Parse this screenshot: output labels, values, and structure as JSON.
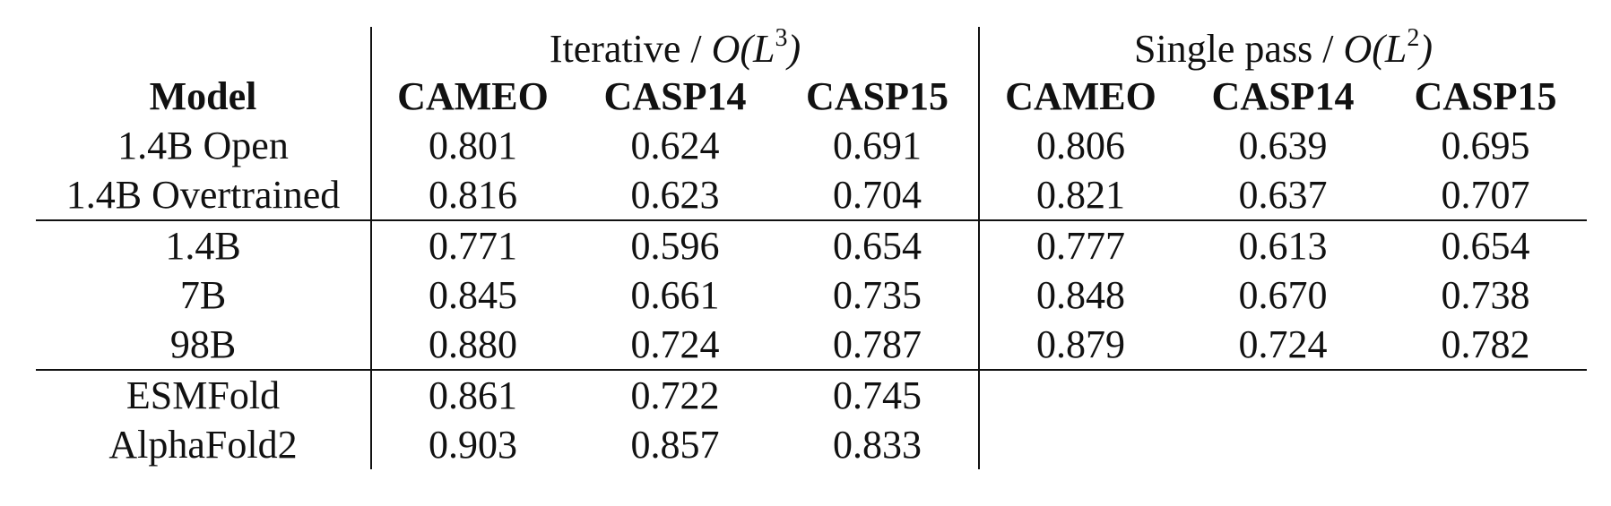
{
  "table": {
    "group_header": {
      "iterative": {
        "label": "Iterative / ",
        "complexity": "O(L",
        "exp": "3",
        "close": ")"
      },
      "single": {
        "label": "Single pass / ",
        "complexity": "O(L",
        "exp": "2",
        "close": ")"
      }
    },
    "columns": [
      "Model",
      "CAMEO",
      "CASP14",
      "CASP15",
      "CAMEO",
      "CASP14",
      "CASP15"
    ],
    "rows": [
      {
        "model": "1.4B Open",
        "values": [
          "0.801",
          "0.624",
          "0.691",
          "0.806",
          "0.639",
          "0.695"
        ]
      },
      {
        "model": "1.4B Overtrained",
        "values": [
          "0.816",
          "0.623",
          "0.704",
          "0.821",
          "0.637",
          "0.707"
        ]
      },
      {
        "model": "1.4B",
        "values": [
          "0.771",
          "0.596",
          "0.654",
          "0.777",
          "0.613",
          "0.654"
        ]
      },
      {
        "model": "7B",
        "values": [
          "0.845",
          "0.661",
          "0.735",
          "0.848",
          "0.670",
          "0.738"
        ]
      },
      {
        "model": "98B",
        "values": [
          "0.880",
          "0.724",
          "0.787",
          "0.879",
          "0.724",
          "0.782"
        ]
      },
      {
        "model": "ESMFold",
        "values": [
          "0.861",
          "0.722",
          "0.745",
          "",
          "",
          ""
        ]
      },
      {
        "model": "AlphaFold2",
        "values": [
          "0.903",
          "0.857",
          "0.833",
          "",
          "",
          ""
        ]
      }
    ]
  }
}
